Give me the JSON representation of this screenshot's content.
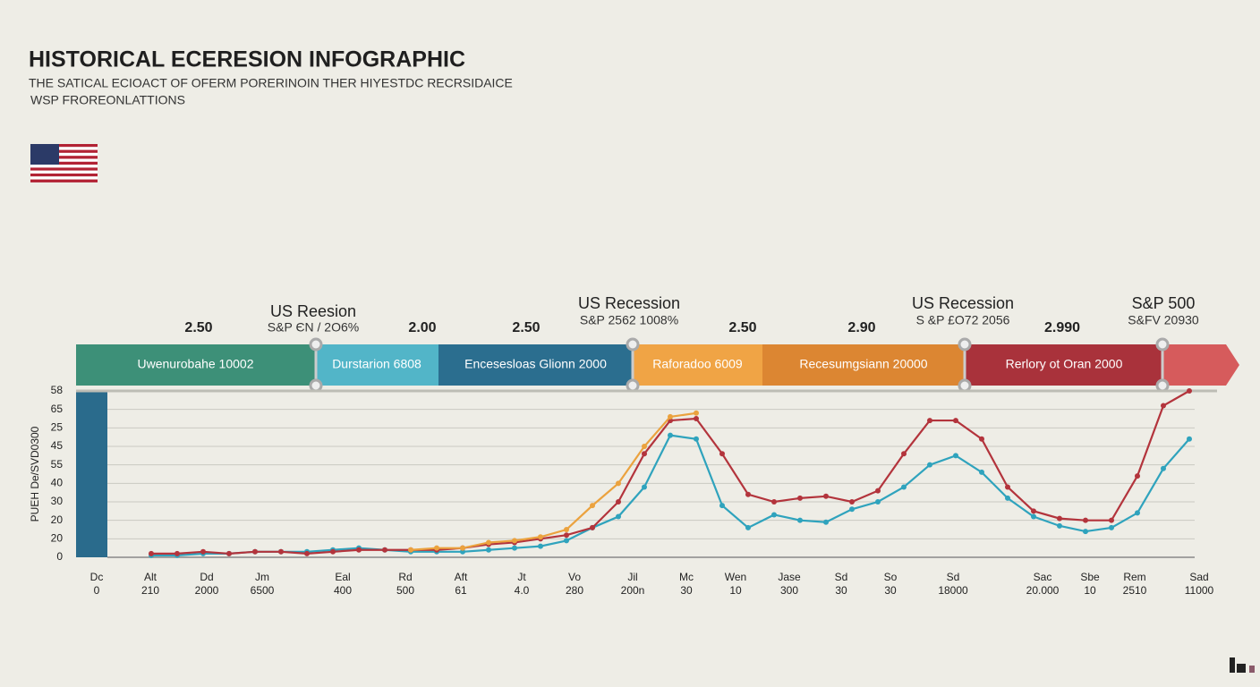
{
  "header": {
    "title": "HISTORICAL ECERESION INFOGRAPHIC",
    "subtitle": [
      "THE SATICAL ECIOACT OF OFERM PORERINOIN  THER HIYESTDC RECRSIDAICE",
      "WSP FROREONLATTIONS"
    ]
  },
  "timeline": {
    "segments": [
      {
        "label": "Uwenurobahe 10002",
        "color": "#3d9078"
      },
      {
        "label": "Durstarion 6808",
        "color": "#52b5c8"
      },
      {
        "label": "Encesesloas Glionn 2000",
        "color": "#2b6e8f"
      },
      {
        "label": "Raforadoo 6009",
        "color": "#f0a445"
      },
      {
        "label": "Recesumgsiann 20000",
        "color": "#dc8632"
      },
      {
        "label": "Rerlory ot Oran 2000",
        "color": "#a9323b"
      },
      {
        "label": null,
        "color": "#d65b5c"
      }
    ],
    "callouts": [
      {
        "value": "2.50"
      },
      {
        "title": "US Reesion",
        "text": "S&P ЄN / 2O6%"
      },
      {
        "value": "2.00"
      },
      {
        "value": "2.50"
      },
      {
        "title": "US Recession",
        "text": "S&P 2562 1008%"
      },
      {
        "value": "2.50"
      },
      {
        "value": "2.90"
      },
      {
        "title": "US Recession",
        "text": "S &P £O72 2056"
      },
      {
        "value": "2.990"
      },
      {
        "title": "S&P 500",
        "text": "S&FV 20930"
      }
    ]
  },
  "chart_data": {
    "type": "line",
    "y_label": "PUEH De/SVD0300",
    "ylim": [
      0,
      90
    ],
    "yticks": [
      0,
      {
        "value": 10,
        "label": "20"
      },
      20,
      30,
      40,
      {
        "value": 50,
        "label": "55"
      },
      {
        "value": 60,
        "label": "45"
      },
      {
        "value": 70,
        "label": "25"
      },
      {
        "value": 80,
        "label": "65"
      },
      {
        "value": 90,
        "label": "58"
      }
    ],
    "grid": true,
    "x_tick_labels": [
      [
        "Dc",
        "0"
      ],
      [
        "Alt",
        "210"
      ],
      [
        "Dd",
        "2000"
      ],
      [
        "Jm",
        "6500"
      ],
      [
        "Eal",
        "400"
      ],
      [
        "Rd",
        "500"
      ],
      [
        "Aft",
        "61"
      ],
      [
        "Jt",
        "4.0"
      ],
      [
        "Vo",
        "280"
      ],
      [
        "Jil",
        "200n"
      ],
      [
        "Mc",
        "30"
      ],
      [
        "Wen",
        "10"
      ],
      [
        "Jase",
        "300"
      ],
      [
        "Sd",
        "30"
      ],
      [
        "So",
        "30"
      ],
      [
        "Sd",
        "18000"
      ],
      [
        "Sac",
        "20.000"
      ],
      [
        "Sbe",
        "10"
      ],
      [
        "Rem",
        "2510"
      ],
      [
        "Sad",
        "11000"
      ]
    ],
    "series": [
      {
        "color": "#2fa3bd",
        "values": [
          null,
          1,
          1,
          2,
          2,
          3,
          3,
          3,
          4,
          5,
          4,
          3,
          3,
          3,
          4,
          5,
          6,
          9,
          16,
          22,
          38,
          66,
          64,
          28,
          16,
          23,
          20,
          19,
          26,
          30,
          38,
          50,
          55,
          46,
          32,
          22,
          17,
          14,
          16,
          24,
          48,
          64
        ]
      },
      {
        "color": "#b3343c",
        "values": [
          null,
          2,
          2,
          3,
          2,
          3,
          3,
          2,
          3,
          4,
          4,
          4,
          4,
          5,
          7,
          8,
          10,
          12,
          16,
          30,
          56,
          74,
          75,
          56,
          34,
          30,
          32,
          33,
          30,
          36,
          56,
          74,
          74,
          64,
          38,
          25,
          21,
          20,
          20,
          44,
          82,
          90
        ]
      },
      {
        "color": "#eba23e",
        "values": [
          null,
          null,
          null,
          null,
          null,
          null,
          null,
          null,
          null,
          null,
          null,
          4,
          5,
          5,
          8,
          9,
          11,
          15,
          28,
          40,
          60,
          76,
          78,
          null,
          null,
          null,
          null,
          null,
          null,
          null,
          null,
          null,
          null,
          null,
          null,
          null,
          null,
          null,
          null,
          null,
          null,
          null
        ]
      }
    ]
  }
}
